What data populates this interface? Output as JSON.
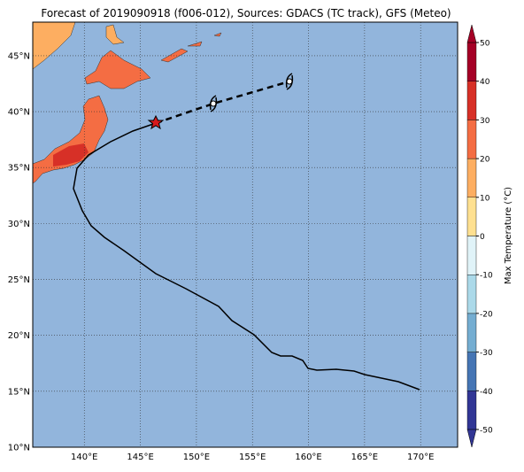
{
  "title": "Forecast of 2019090918 (f006-012), Sources: GDACS (TC track), GFS (Meteo)",
  "map": {
    "lon_range": [
      135.4,
      173.3
    ],
    "lat_range": [
      10,
      48
    ],
    "lon_ticks": [
      {
        "value": 140,
        "label": "140°E"
      },
      {
        "value": 145,
        "label": "145°E"
      },
      {
        "value": 150,
        "label": "150°E"
      },
      {
        "value": 155,
        "label": "155°E"
      },
      {
        "value": 160,
        "label": "160°E"
      },
      {
        "value": 165,
        "label": "165°E"
      },
      {
        "value": 170,
        "label": "170°E"
      }
    ],
    "lat_ticks": [
      {
        "value": 10,
        "label": "10°N"
      },
      {
        "value": 15,
        "label": "15°N"
      },
      {
        "value": 20,
        "label": "20°N"
      },
      {
        "value": 25,
        "label": "25°N"
      },
      {
        "value": 30,
        "label": "30°N"
      },
      {
        "value": 35,
        "label": "35°N"
      },
      {
        "value": 40,
        "label": "40°N"
      },
      {
        "value": 45,
        "label": "45°N"
      }
    ]
  },
  "colorbar": {
    "label": "Max Temperature (°C)",
    "range": [
      -50,
      50
    ],
    "ticks": [
      -50,
      -40,
      -30,
      -20,
      -10,
      0,
      10,
      20,
      30,
      40,
      50
    ],
    "colors": [
      "#313695",
      "#4575b4",
      "#74add1",
      "#abd9e9",
      "#e0f3f8",
      "#fee090",
      "#fdae61",
      "#f46d43",
      "#d73027",
      "#a50026"
    ]
  }
}
